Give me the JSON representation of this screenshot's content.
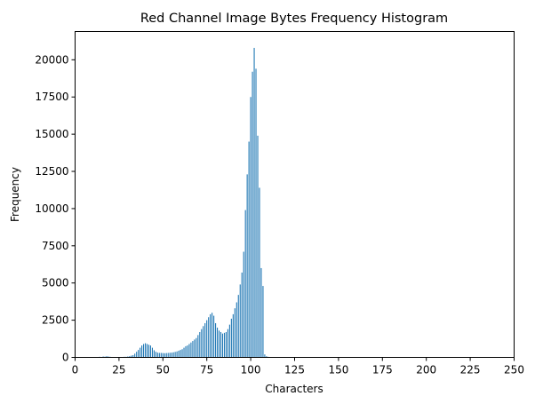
{
  "chart_data": {
    "type": "bar",
    "title": "Red Channel Image Bytes Frequency Histogram",
    "xlabel": "Characters",
    "ylabel": "Frequency",
    "xlim": [
      0,
      250
    ],
    "ylim": [
      0,
      21900
    ],
    "grid": false,
    "bar_color": "#1f77b4",
    "x_ticks": [
      0,
      25,
      50,
      75,
      100,
      125,
      150,
      175,
      200,
      225,
      250
    ],
    "x_tick_labels": [
      "0",
      "25",
      "50",
      "75",
      "100",
      "125",
      "150",
      "175",
      "200",
      "225",
      "250"
    ],
    "y_ticks": [
      0,
      2500,
      5000,
      7500,
      10000,
      12500,
      15000,
      17500,
      20000
    ],
    "y_tick_labels": [
      "0",
      "2500",
      "5000",
      "7500",
      "10000",
      "12500",
      "15000",
      "17500",
      "20000"
    ],
    "x": [
      13,
      14,
      15,
      16,
      17,
      18,
      19,
      20,
      21,
      22,
      23,
      24,
      25,
      26,
      27,
      28,
      29,
      30,
      31,
      32,
      33,
      34,
      35,
      36,
      37,
      38,
      39,
      40,
      41,
      42,
      43,
      44,
      45,
      46,
      47,
      48,
      49,
      50,
      51,
      52,
      53,
      54,
      55,
      56,
      57,
      58,
      59,
      60,
      61,
      62,
      63,
      64,
      65,
      66,
      67,
      68,
      69,
      70,
      71,
      72,
      73,
      74,
      75,
      76,
      77,
      78,
      79,
      80,
      81,
      82,
      83,
      84,
      85,
      86,
      87,
      88,
      89,
      90,
      91,
      92,
      93,
      94,
      95,
      96,
      97,
      98,
      99,
      100,
      101,
      102,
      103,
      104,
      105,
      106,
      107,
      108,
      109,
      110,
      111,
      112,
      113
    ],
    "values": [
      20,
      40,
      30,
      60,
      50,
      80,
      60,
      40,
      30,
      30,
      20,
      30,
      30,
      20,
      30,
      40,
      40,
      60,
      80,
      120,
      150,
      250,
      380,
      500,
      650,
      800,
      900,
      950,
      900,
      850,
      800,
      650,
      480,
      380,
      320,
      300,
      300,
      290,
      280,
      290,
      300,
      310,
      320,
      340,
      370,
      400,
      450,
      500,
      550,
      650,
      750,
      800,
      900,
      1000,
      1100,
      1200,
      1300,
      1500,
      1700,
      1900,
      2100,
      2300,
      2500,
      2700,
      2900,
      3000,
      2800,
      2300,
      2000,
      1800,
      1700,
      1600,
      1650,
      1700,
      1900,
      2200,
      2600,
      2900,
      3300,
      3700,
      4200,
      4900,
      5700,
      7100,
      9900,
      12300,
      14500,
      17500,
      19200,
      20800,
      19400,
      14900,
      11400,
      6000,
      4800,
      200,
      80,
      40,
      20,
      10,
      5
    ]
  }
}
